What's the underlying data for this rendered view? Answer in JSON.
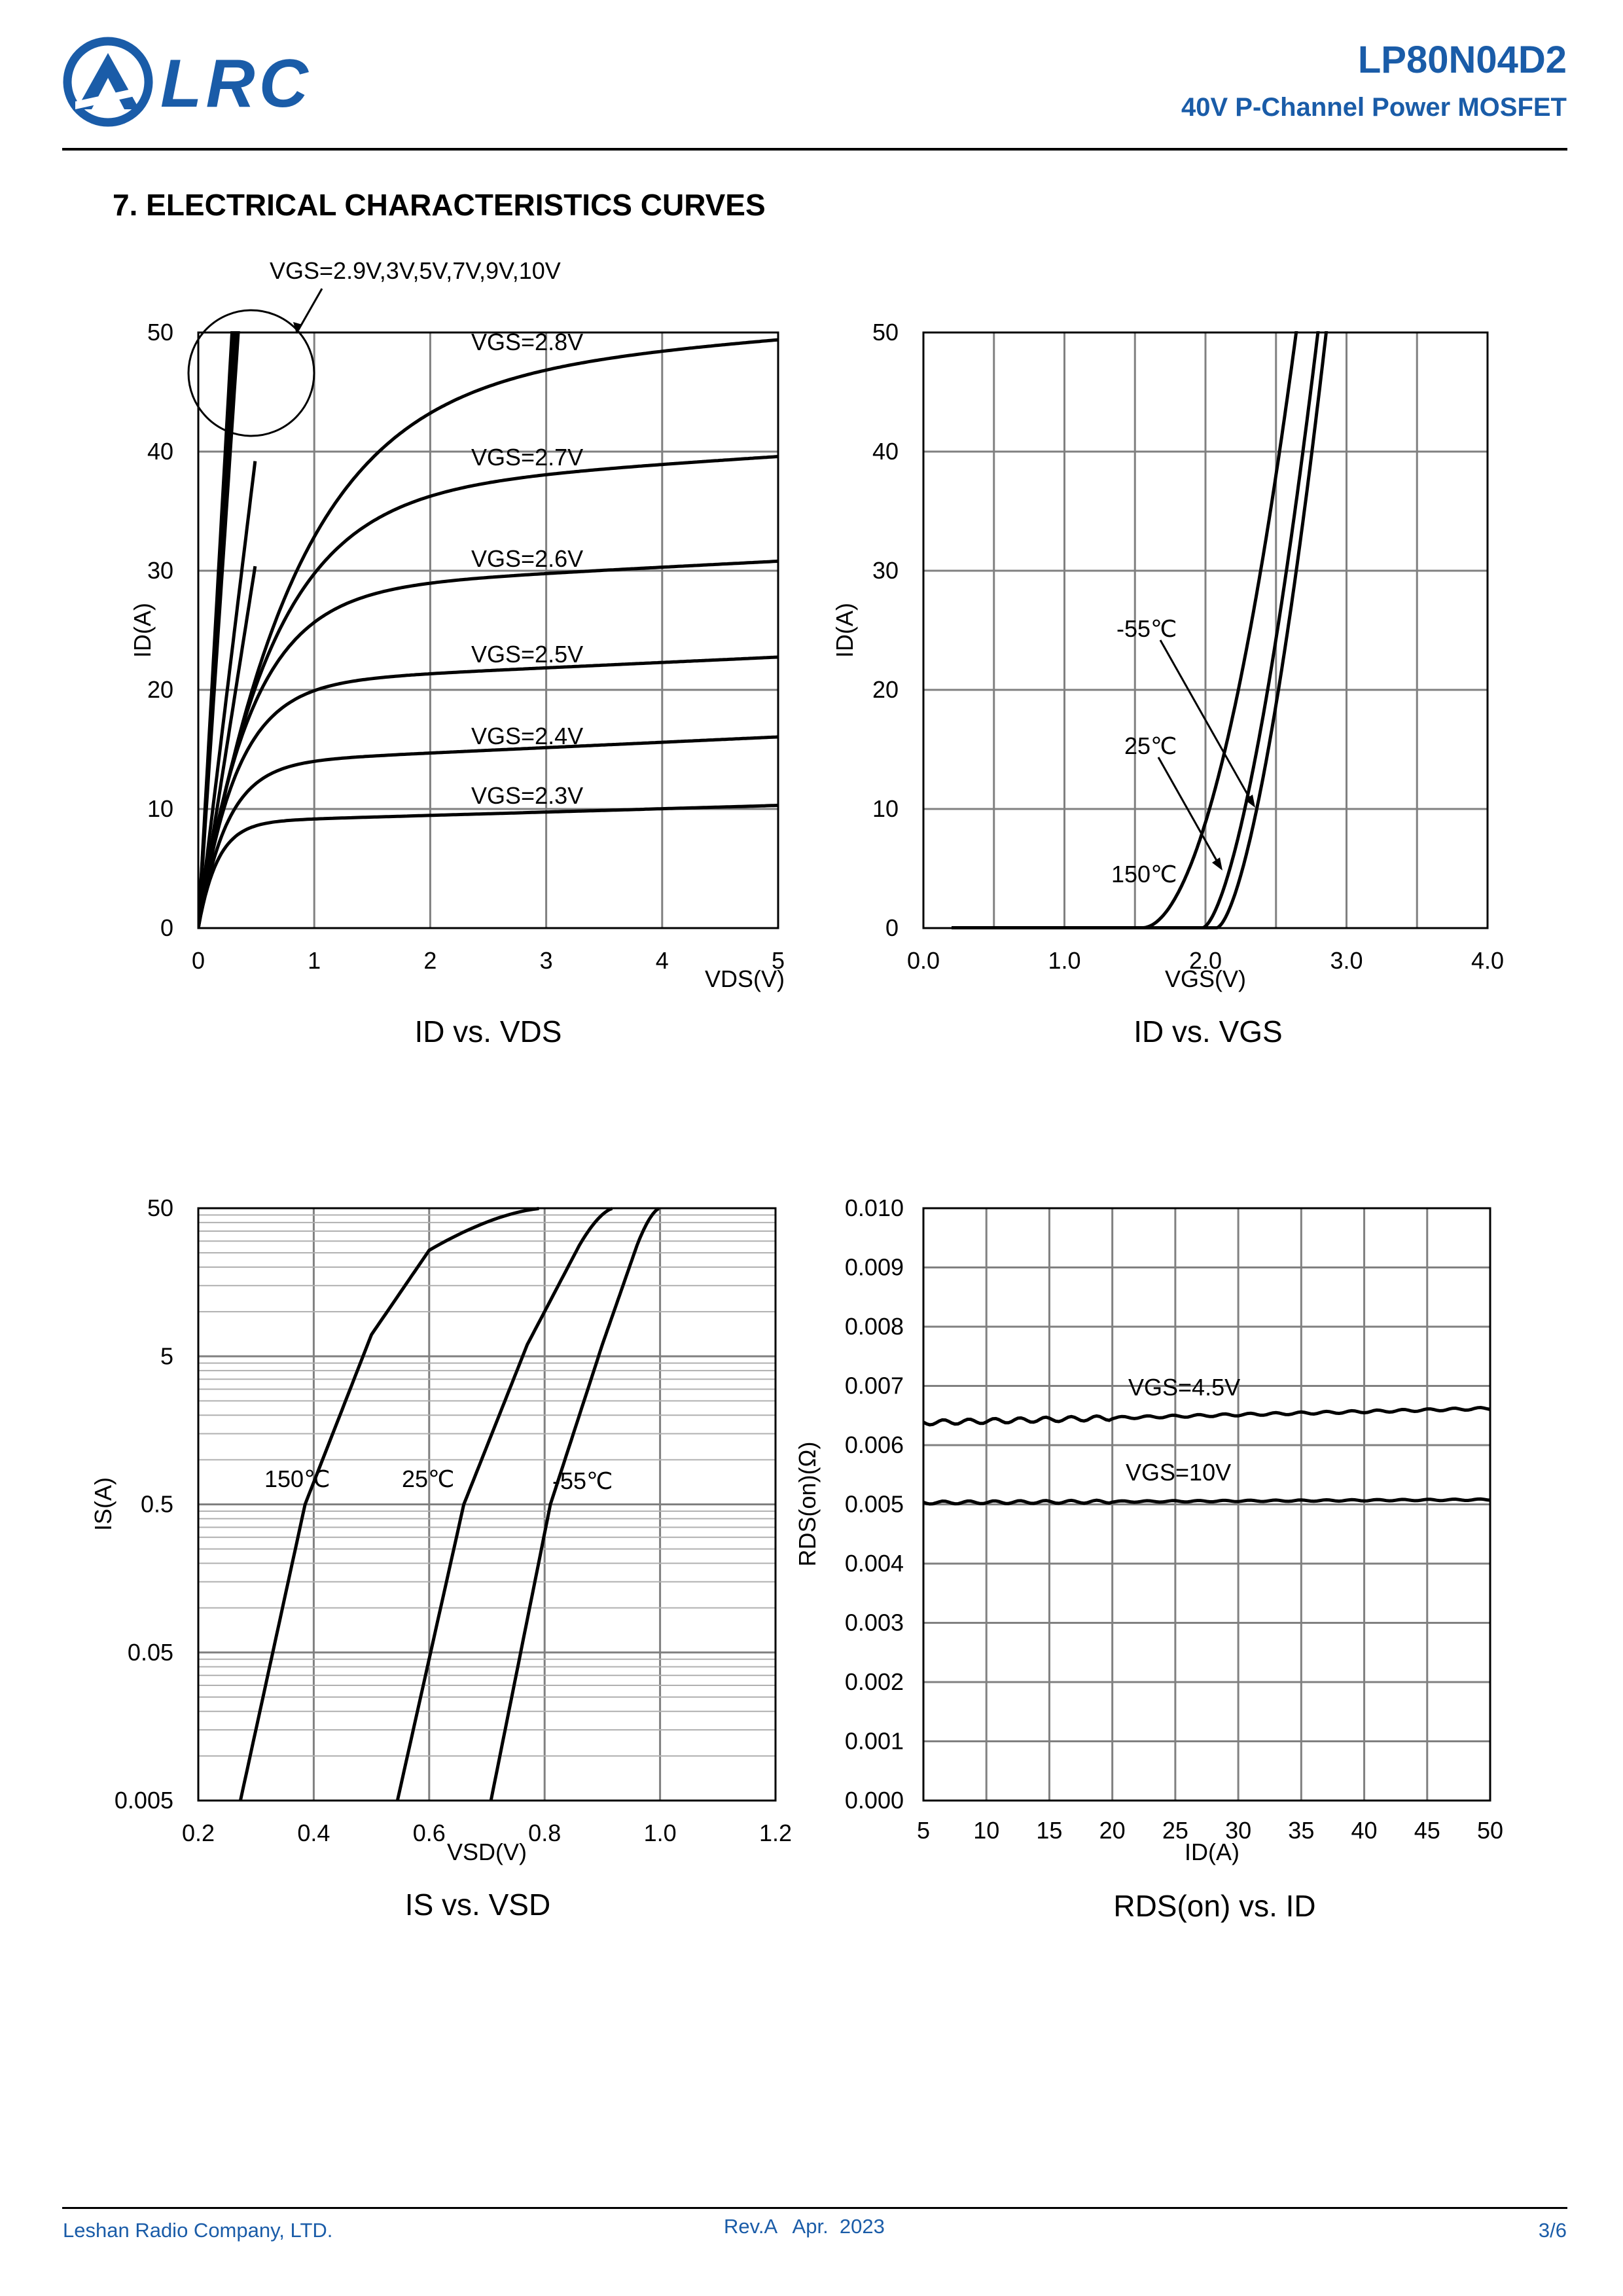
{
  "header": {
    "logo_text": "LRC",
    "part_number": "LP80N04D2",
    "description": "40V P-Channel Power MOSFET"
  },
  "section_title": "7. ELECTRICAL CHARACTERISTICS CURVES",
  "colors": {
    "brand": "#1a5ca8",
    "grid": "#808080",
    "curve": "#000000"
  },
  "chart_data": [
    {
      "type": "line",
      "caption": "ID vs. VDS",
      "xlabel": "VDS(V)",
      "ylabel": "ID(A)",
      "xlim": [
        0,
        5
      ],
      "ylim": [
        0,
        50
      ],
      "xticks": [
        "0",
        "1",
        "2",
        "3",
        "4",
        "5"
      ],
      "yticks": [
        "0",
        "10",
        "20",
        "30",
        "40",
        "50"
      ],
      "grid": true,
      "annotation": "VGS=2.9V,3V,5V,7V,9V,10V",
      "series": [
        {
          "name": "VGS=2.3V",
          "sat": 8.9,
          "k": 6,
          "slope": 0.28
        },
        {
          "name": "VGS=2.4V",
          "sat": 13.8,
          "k": 4,
          "slope": 0.45
        },
        {
          "name": "VGS=2.5V",
          "sat": 20.5,
          "k": 3,
          "slope": 0.45
        },
        {
          "name": "VGS=2.6V",
          "sat": 28.3,
          "k": 2.2,
          "slope": 0.5
        },
        {
          "name": "VGS=2.7V",
          "sat": 36.5,
          "k": 1.6,
          "slope": 0.62
        },
        {
          "name": "VGS=2.8V",
          "sat": 46.0,
          "k": 1.2,
          "slope": 0.7
        },
        {
          "name": "VGS=2.9V",
          "linear_slope": 62
        },
        {
          "name": "VGS=3V",
          "linear_slope": 80
        },
        {
          "name": "VGS=5V",
          "linear_slope": 145
        },
        {
          "name": "VGS=7V",
          "linear_slope": 155
        },
        {
          "name": "VGS=9V",
          "linear_slope": 165
        },
        {
          "name": "VGS=10V",
          "linear_slope": 172
        }
      ]
    },
    {
      "type": "line",
      "caption": "ID vs. VGS",
      "xlabel": "VGS(V)",
      "ylabel": "ID(A)",
      "xlim": [
        0,
        4
      ],
      "ylim": [
        0,
        50
      ],
      "xticks": [
        "0.0",
        "1.0",
        "2.0",
        "3.0",
        "4.0"
      ],
      "yticks": [
        "0",
        "10",
        "20",
        "30",
        "40",
        "50"
      ],
      "grid": true,
      "x_start": 0.2,
      "series": [
        {
          "name": "-55℃",
          "vth": 2.08,
          "a": 75,
          "p": 1.6
        },
        {
          "name": "25℃",
          "vth": 1.98,
          "a": 69,
          "p": 1.6
        },
        {
          "name": "150℃",
          "vth": 1.55,
          "a": 42,
          "p": 1.95
        }
      ]
    },
    {
      "type": "line",
      "caption": "IS vs. VSD",
      "xlabel": "VSD(V)",
      "ylabel": "IS(A)",
      "yscale": "log",
      "xlim": [
        0.2,
        1.2
      ],
      "ylim": [
        0.005,
        50
      ],
      "xticks": [
        "0.2",
        "0.4",
        "0.6",
        "0.8",
        "1.0",
        "1.2"
      ],
      "yticks": [
        "0.005",
        "0.05",
        "0.5",
        "5",
        "50"
      ],
      "grid": true,
      "series": [
        {
          "name": "150℃",
          "points": [
            [
              0.273,
              0.005
            ],
            [
              0.385,
              0.5
            ],
            [
              0.5,
              7
            ],
            [
              0.6,
              26
            ],
            [
              0.8,
              50
            ]
          ]
        },
        {
          "name": "25℃",
          "points": [
            [
              0.545,
              0.005
            ],
            [
              0.66,
              0.5
            ],
            [
              0.77,
              6
            ],
            [
              0.86,
              28
            ],
            [
              0.92,
              50
            ]
          ]
        },
        {
          "name": "-55℃",
          "points": [
            [
              0.707,
              0.005
            ],
            [
              0.81,
              0.5
            ],
            [
              0.9,
              6
            ],
            [
              0.96,
              28
            ],
            [
              1.0,
              50
            ]
          ]
        }
      ]
    },
    {
      "type": "line",
      "caption": "RDS(on) vs. ID",
      "xlabel": "ID(A)",
      "ylabel": "RDS(on)(Ω)",
      "xlim": [
        5,
        50
      ],
      "ylim": [
        0,
        0.01
      ],
      "xticks": [
        "5",
        "10",
        "15",
        "20",
        "25",
        "30",
        "35",
        "40",
        "45",
        "50"
      ],
      "yticks": [
        "0.000",
        "0.001",
        "0.002",
        "0.003",
        "0.004",
        "0.005",
        "0.006",
        "0.007",
        "0.008",
        "0.009",
        "0.010"
      ],
      "grid": true,
      "series": [
        {
          "name": "VGS=4.5V",
          "start": 0.00638,
          "end": 0.00662
        },
        {
          "name": "VGS=10V",
          "start": 0.00503,
          "end": 0.00508
        }
      ]
    }
  ],
  "footer": {
    "company": "Leshan Radio Company, LTD.",
    "revision": "Rev.A   Apr.  2023",
    "page": "3/6"
  }
}
